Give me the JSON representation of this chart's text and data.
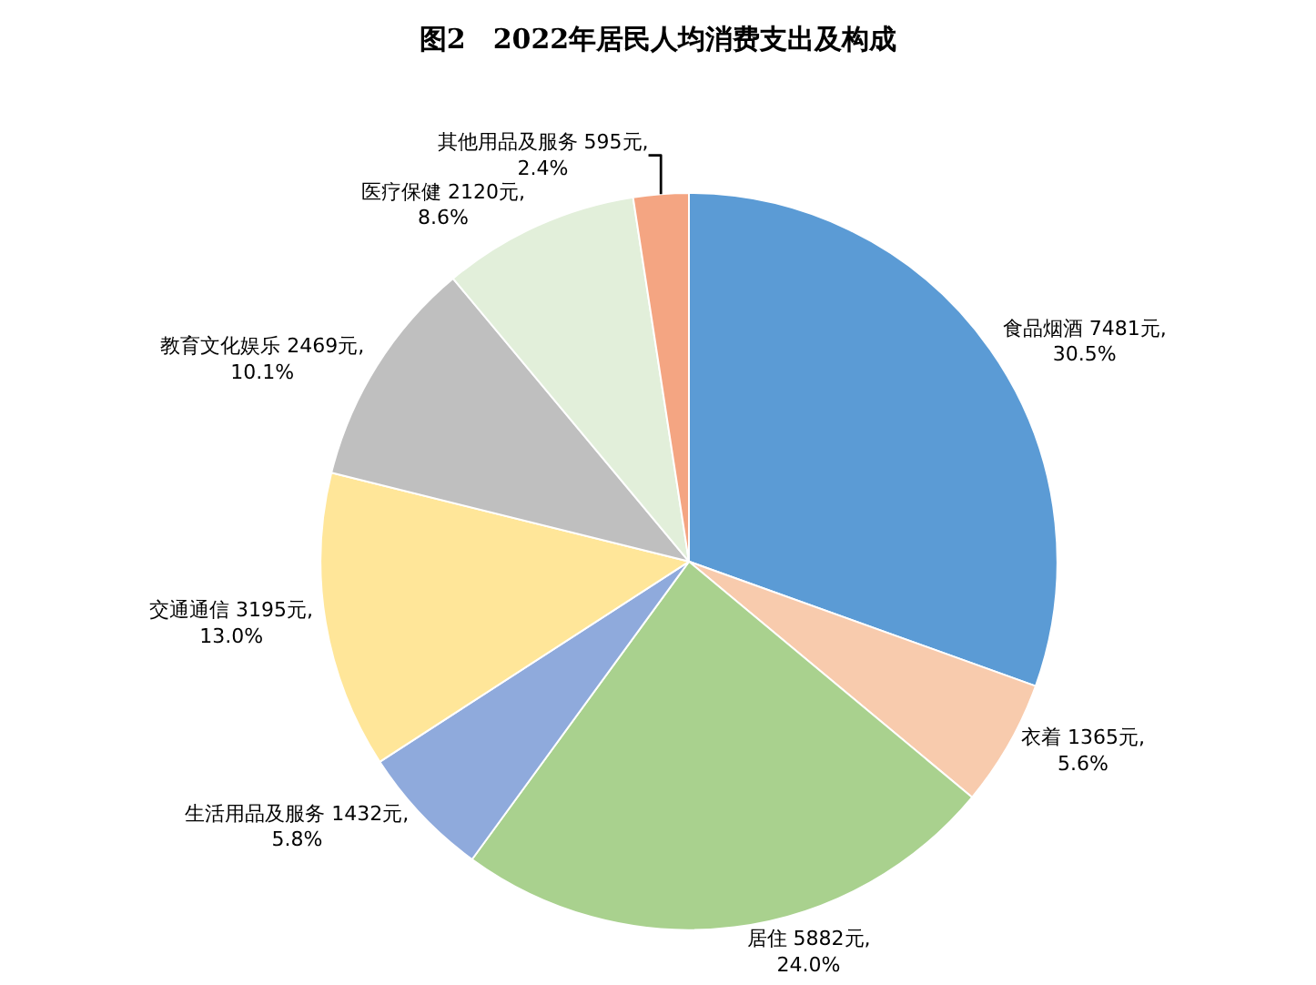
{
  "chart_data": {
    "type": "pie",
    "title": "图2　2022年居民人均消费支出及构成",
    "categories": [
      "食品烟酒",
      "衣着",
      "居住",
      "生活用品及服务",
      "交通通信",
      "教育文化娱乐",
      "医疗保健",
      "其他用品及服务"
    ],
    "values": [
      7481,
      1365,
      5882,
      1432,
      3195,
      2469,
      2120,
      595
    ],
    "value_labels": [
      "7481元,\n30.5%",
      "1365元,\n5.6%",
      "5882元,\n24.0%",
      "1432元,\n5.8%",
      "3195元,\n13.0%",
      "2469元,\n10.1%",
      "2120元,\n8.6%",
      "595元,\n2.4%"
    ],
    "colors": [
      "#5b9bd5",
      "#f8cbad",
      "#a9d18e",
      "#8faadc",
      "#ffe699",
      "#bfbfbf",
      "#e2efda",
      "#f4a582"
    ],
    "legend": false
  }
}
